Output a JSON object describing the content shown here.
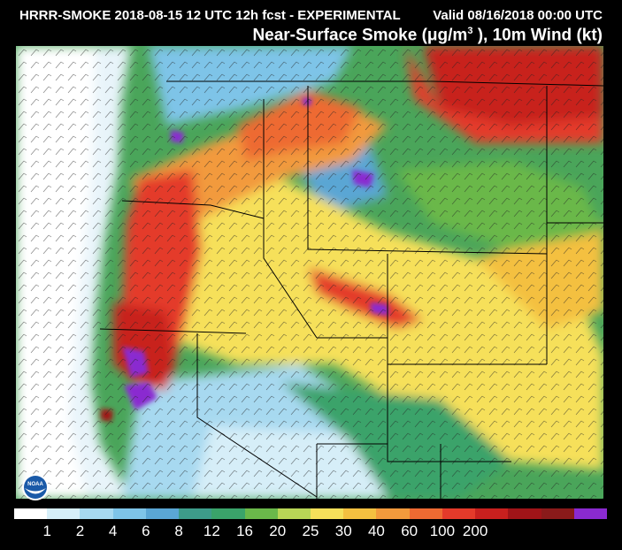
{
  "header": {
    "title_left": "HRRR-SMOKE 2018-08-15 12 UTC 12h fcst - EXPERIMENTAL",
    "title_right": "Valid 08/16/2018 00:00 UTC",
    "subtitle_main": "Near-Surface Smoke (",
    "subtitle_unit": "μg/m",
    "subtitle_exp": "3",
    "subtitle_rest": " ), 10m Wind (kt)"
  },
  "logo": {
    "icon": "noaa-logo",
    "text": "NOAA"
  },
  "legend": {
    "colors": [
      "#ffffff",
      "#d6eef8",
      "#a7d9f0",
      "#7ec4e8",
      "#5aa6d4",
      "#3d9c8a",
      "#3aa36a",
      "#6ab84a",
      "#b8d656",
      "#f6e05a",
      "#f4c040",
      "#f29a3c",
      "#ee6a32",
      "#e43a2a",
      "#c8201e",
      "#a01418",
      "#8a1a1a",
      "#8a2ad0"
    ],
    "labels": [
      "1",
      "2",
      "4",
      "6",
      "8",
      "12",
      "16",
      "20",
      "25",
      "30",
      "40",
      "60",
      "100",
      "200"
    ]
  },
  "colors": {
    "background": "#000000",
    "ocean": "#e8f4fa",
    "wind_barbs": "#222222",
    "borders": "#000000"
  }
}
